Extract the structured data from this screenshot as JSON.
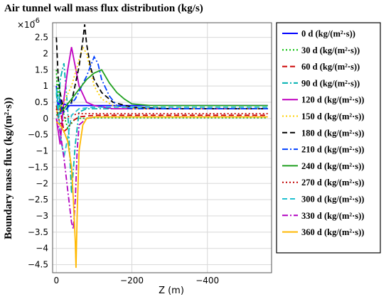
{
  "chart_data": {
    "type": "line",
    "title": "Air tunnel wall mass flux distribution (kg/s)",
    "xlabel": "Z (m)",
    "ylabel": "Boundary mass flux (kg/(m²·s))",
    "y_multiplier_label": "×10",
    "y_multiplier_exp": "-6",
    "xlim": [
      10,
      -570
    ],
    "ylim": [
      -4.75,
      2.95
    ],
    "x_ticks": [
      0,
      -200,
      -400
    ],
    "x_tick_labels": [
      "0",
      "−200",
      "−400"
    ],
    "y_ticks": [
      -4.5,
      -4,
      -3.5,
      -3,
      -2.5,
      -2,
      -1.5,
      -1,
      -0.5,
      0,
      0.5,
      1,
      1.5,
      2,
      2.5
    ],
    "y_tick_labels": [
      "−4.5",
      "−4",
      "−3.5",
      "−3",
      "−2.5",
      "−2",
      "−1.5",
      "−1",
      "−0.5",
      "0",
      "0.5",
      "1",
      "1.5",
      "2",
      "2.5"
    ],
    "grid": true,
    "legend_position": "right",
    "series": [
      {
        "name": "0 d (kg/(m²·s))",
        "color": "#0000ff",
        "dash": "solid",
        "x": [
          0,
          -5,
          -10,
          -15,
          -20,
          -30,
          -50,
          -100,
          -150,
          -200,
          -300,
          -400,
          -560
        ],
        "y": [
          1.0,
          0.3,
          0.6,
          0.2,
          0.45,
          0.4,
          0.4,
          0.4,
          0.4,
          0.4,
          0.4,
          0.4,
          0.4
        ]
      },
      {
        "name": "30 d (kg/(m²·s))",
        "color": "#00c000",
        "dash": "dot",
        "x": [
          0,
          -3,
          -6,
          -10,
          -15,
          -20,
          -30,
          -50,
          -100,
          -150,
          -200,
          -300,
          -400,
          -560
        ],
        "y": [
          1.5,
          0.6,
          1.2,
          0.3,
          0.5,
          0.1,
          -0.3,
          0.0,
          0.02,
          0.02,
          0.02,
          0.02,
          0.02,
          0.02
        ]
      },
      {
        "name": "60 d (kg/(m²·s))",
        "color": "#cc0000",
        "dash": "dash",
        "x": [
          0,
          -5,
          -10,
          -20,
          -30,
          -40,
          -60,
          -100,
          -150,
          -200,
          -300,
          -400,
          -560
        ],
        "y": [
          0.4,
          0.1,
          0.3,
          -0.4,
          -0.3,
          -0.1,
          0.05,
          0.1,
          0.1,
          0.1,
          0.1,
          0.1,
          0.1
        ]
      },
      {
        "name": "90 d (kg/(m²·s))",
        "color": "#00b0b0",
        "dash": "dashdot",
        "x": [
          0,
          -5,
          -10,
          -20,
          -30,
          -40,
          -50,
          -60,
          -80,
          -100,
          -150,
          -200,
          -300,
          -400,
          -560
        ],
        "y": [
          0.8,
          0.0,
          1.2,
          1.7,
          0.3,
          -2.3,
          -0.8,
          0.2,
          0.3,
          0.3,
          0.3,
          0.3,
          0.3,
          0.3,
          0.3
        ]
      },
      {
        "name": "120 d (kg/(m²·s))",
        "color": "#c000c0",
        "dash": "solid",
        "x": [
          0,
          -10,
          -20,
          -30,
          -40,
          -50,
          -60,
          -80,
          -100,
          -150,
          -200,
          -300,
          -400,
          -560
        ],
        "y": [
          0.0,
          -0.8,
          0.6,
          1.5,
          2.2,
          1.6,
          1.0,
          0.5,
          0.4,
          0.3,
          0.3,
          0.3,
          0.3,
          0.3
        ]
      },
      {
        "name": "150 d (kg/(m²·s))",
        "color": "#ffd000",
        "dash": "dot",
        "x": [
          0,
          -20,
          -40,
          -60,
          -70,
          -80,
          -90,
          -100,
          -120,
          -150,
          -200,
          -300,
          -400,
          -560
        ],
        "y": [
          0.2,
          0.5,
          1.0,
          1.8,
          2.2,
          2.0,
          1.5,
          1.0,
          0.6,
          0.4,
          0.3,
          0.3,
          0.3,
          0.3
        ]
      },
      {
        "name": "180 d (kg/(m²·s))",
        "color": "#000000",
        "dash": "dash",
        "x": [
          0,
          -5,
          -10,
          -20,
          -40,
          -60,
          -70,
          -75,
          -80,
          -90,
          -100,
          -120,
          -150,
          -200,
          -300,
          -400,
          -560
        ],
        "y": [
          2.5,
          1.2,
          0.8,
          0.2,
          0.5,
          1.6,
          2.4,
          2.9,
          2.3,
          1.6,
          1.2,
          0.8,
          0.5,
          0.35,
          0.3,
          0.3,
          0.3
        ]
      },
      {
        "name": "210 d (kg/(m²·s))",
        "color": "#0040ff",
        "dash": "dashdot",
        "x": [
          0,
          -20,
          -50,
          -80,
          -100,
          -110,
          -120,
          -140,
          -160,
          -200,
          -300,
          -400,
          -560
        ],
        "y": [
          0.1,
          0.2,
          0.6,
          1.3,
          1.9,
          1.7,
          1.2,
          0.7,
          0.4,
          0.3,
          0.3,
          0.3,
          0.3
        ]
      },
      {
        "name": "240 d (kg/(m²·s))",
        "color": "#20a020",
        "dash": "solid",
        "x": [
          0,
          -20,
          -40,
          -60,
          -80,
          -100,
          -120,
          -140,
          -160,
          -180,
          -200,
          -250,
          -300,
          -400,
          -560
        ],
        "y": [
          0.1,
          0.3,
          0.6,
          0.9,
          1.2,
          1.4,
          1.5,
          1.1,
          0.8,
          0.6,
          0.45,
          0.4,
          0.4,
          0.4,
          0.4
        ]
      },
      {
        "name": "270 d (kg/(m²·s))",
        "color": "#c00000",
        "dash": "dot",
        "x": [
          0,
          -10,
          -20,
          -40,
          -60,
          -80,
          -100,
          -150,
          -200,
          -300,
          -400,
          -560
        ],
        "y": [
          0.3,
          -0.2,
          0.0,
          0.1,
          0.15,
          0.15,
          0.15,
          0.15,
          0.15,
          0.15,
          0.15,
          0.15
        ]
      },
      {
        "name": "300 d (kg/(m²·s))",
        "color": "#20c0d0",
        "dash": "dash",
        "x": [
          0,
          -5,
          -10,
          -20,
          -30,
          -40,
          -60,
          -100,
          -150,
          -200,
          -300,
          -400,
          -560
        ],
        "y": [
          0.9,
          0.4,
          -0.5,
          -1.2,
          -0.6,
          0.1,
          0.3,
          0.35,
          0.35,
          0.35,
          0.35,
          0.35,
          0.35
        ]
      },
      {
        "name": "330 d (kg/(m²·s))",
        "color": "#b000c0",
        "dash": "dashdot",
        "x": [
          0,
          -10,
          -20,
          -30,
          -40,
          -45,
          -50,
          -55,
          -60,
          -80,
          -100,
          -150,
          -200,
          -300,
          -400,
          -560
        ],
        "y": [
          0.0,
          -0.4,
          -1.2,
          -2.2,
          -3.2,
          -3.4,
          -2.5,
          -1.0,
          -0.2,
          0.0,
          0.05,
          0.05,
          0.05,
          0.05,
          0.05,
          0.05
        ]
      },
      {
        "name": "360 d (kg/(m²·s))",
        "color": "#ffb800",
        "dash": "solid",
        "x": [
          0,
          -10,
          -20,
          -30,
          -40,
          -45,
          -50,
          -52,
          -55,
          -60,
          -70,
          -80,
          -100,
          -150,
          -200,
          -300,
          -400,
          -560
        ],
        "y": [
          -0.1,
          -0.2,
          -0.4,
          -0.7,
          -1.5,
          -2.5,
          -3.8,
          -4.6,
          -3.0,
          -1.0,
          -0.2,
          0.0,
          0.05,
          0.05,
          0.05,
          0.05,
          0.05,
          0.05
        ]
      }
    ]
  }
}
